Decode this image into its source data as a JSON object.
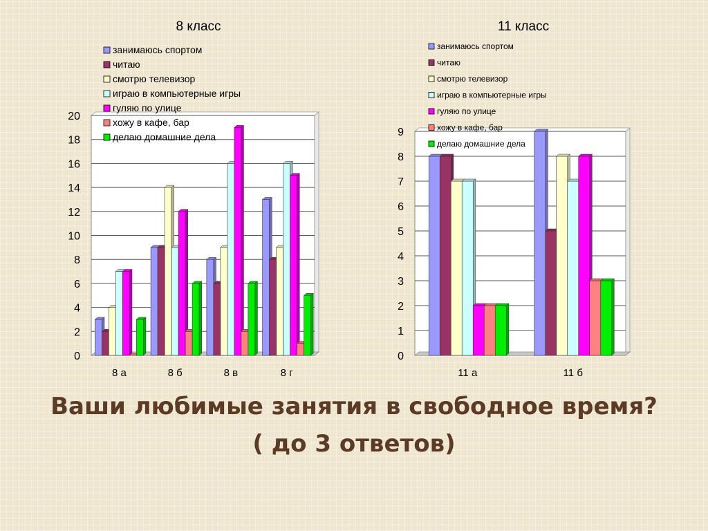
{
  "slide": {
    "title_line1": "Ваши любимые занятия в свободное время?",
    "title_line2": "( до 3 ответов)"
  },
  "colors": {
    "series": [
      "#9999ff",
      "#993366",
      "#ffffcc",
      "#ccffff",
      "#ff00ff",
      "#ff8080",
      "#00ee00"
    ]
  },
  "chart_data": [
    {
      "type": "bar",
      "title": "8 класс",
      "categories": [
        "8 а",
        "8 б",
        "8 в",
        "8 г"
      ],
      "ylim": [
        0,
        20
      ],
      "yticks": [
        0,
        2,
        4,
        6,
        8,
        10,
        12,
        14,
        16,
        18,
        20
      ],
      "grid": true,
      "legend": "top-left",
      "series": [
        {
          "name": "занимаюсь спортом",
          "values": [
            3,
            9,
            8,
            13
          ]
        },
        {
          "name": "читаю",
          "values": [
            2,
            9,
            6,
            8
          ]
        },
        {
          "name": "смотрю телевизор",
          "values": [
            4,
            14,
            9,
            9
          ]
        },
        {
          "name": "играю в компьютерные игры",
          "values": [
            7,
            9,
            16,
            16
          ]
        },
        {
          "name": "гуляю по улице",
          "values": [
            7,
            12,
            19,
            15
          ]
        },
        {
          "name": "хожу в кафе, бар",
          "values": [
            0,
            2,
            2,
            1
          ]
        },
        {
          "name": "делаю домашние дела",
          "values": [
            3,
            6,
            6,
            5
          ]
        }
      ]
    },
    {
      "type": "bar",
      "title": "11 класс",
      "categories": [
        "11 а",
        "11 б"
      ],
      "ylim": [
        0,
        9
      ],
      "yticks": [
        0,
        1,
        2,
        3,
        4,
        5,
        6,
        7,
        8,
        9
      ],
      "grid": true,
      "legend": "top-left",
      "series": [
        {
          "name": "занимаюсь спортом",
          "values": [
            8,
            9
          ]
        },
        {
          "name": "читаю",
          "values": [
            8,
            5
          ]
        },
        {
          "name": "смотрю телевизор",
          "values": [
            7,
            8
          ]
        },
        {
          "name": "играю в компьютерные игры",
          "values": [
            7,
            7
          ]
        },
        {
          "name": "гуляю по улице",
          "values": [
            2,
            8
          ]
        },
        {
          "name": "хожу в кафе, бар",
          "values": [
            2,
            3
          ]
        },
        {
          "name": "делаю домашние дела",
          "values": [
            2,
            3
          ]
        }
      ]
    }
  ]
}
